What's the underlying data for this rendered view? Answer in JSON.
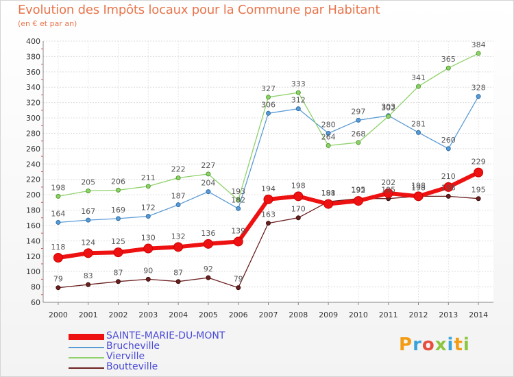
{
  "chart_data": {
    "type": "line",
    "title": "Evolution des Impôts locaux pour la Commune par Habitant",
    "subtitle": "(en € et par an)",
    "x": [
      "2000",
      "2001",
      "2002",
      "2003",
      "2004",
      "2005",
      "2006",
      "2007",
      "2008",
      "2009",
      "2010",
      "2011",
      "2012",
      "2013",
      "2014"
    ],
    "ylim": [
      60,
      400
    ],
    "yticks": [
      60,
      80,
      100,
      120,
      140,
      160,
      180,
      200,
      220,
      240,
      260,
      280,
      300,
      320,
      340,
      360,
      380,
      400
    ],
    "grid": true,
    "legend_position": "bottom-left",
    "series": [
      {
        "name": "SAINTE-MARIE-DU-MONT",
        "color": "#ee1111",
        "values": [
          118,
          124,
          125,
          130,
          132,
          136,
          139,
          194,
          198,
          188,
          192,
          202,
          198,
          210,
          229
        ]
      },
      {
        "name": "Brucheville",
        "color": "#5b9bd5",
        "values": [
          164,
          167,
          169,
          172,
          187,
          204,
          182,
          306,
          312,
          280,
          297,
          303,
          281,
          260,
          328
        ]
      },
      {
        "name": "Vierville",
        "color": "#8fd16a",
        "values": [
          198,
          205,
          206,
          211,
          222,
          227,
          193,
          327,
          333,
          264,
          268,
          302,
          341,
          365,
          384
        ]
      },
      {
        "name": "Boutteville",
        "color": "#6b1f1f",
        "values": [
          79,
          83,
          87,
          90,
          87,
          92,
          79,
          163,
          170,
          191,
          195,
          195,
          198,
          198,
          195
        ]
      }
    ],
    "data_labels": [
      [
        "118",
        "124",
        "125",
        "130",
        "132",
        "136",
        "139",
        "194",
        "198",
        "188",
        "192",
        "202",
        "198",
        "210",
        "229"
      ],
      [
        "164",
        "167",
        "169",
        "172",
        "187",
        "204",
        "182",
        "306",
        "312",
        "280",
        "297",
        "303",
        "281",
        "260",
        "328"
      ],
      [
        "198",
        "205",
        "206",
        "211",
        "222",
        "227",
        "193",
        "327",
        "333",
        "264",
        "268",
        "302",
        "341",
        "365",
        "384"
      ],
      [
        "79",
        "83",
        "87",
        "90",
        "87",
        "92",
        "79",
        "163",
        "170",
        "191",
        "195",
        "195",
        "198",
        "198",
        "195"
      ]
    ]
  },
  "logo": {
    "text": "Proxiti",
    "letters": [
      "P",
      "r",
      "o",
      "x",
      "i",
      "t",
      "i"
    ],
    "colors": [
      "#f39c12",
      "#3aa3d9",
      "#e74c3c",
      "#8cc63f",
      "#3aa3d9",
      "#f39c12",
      "#8cc63f"
    ]
  }
}
